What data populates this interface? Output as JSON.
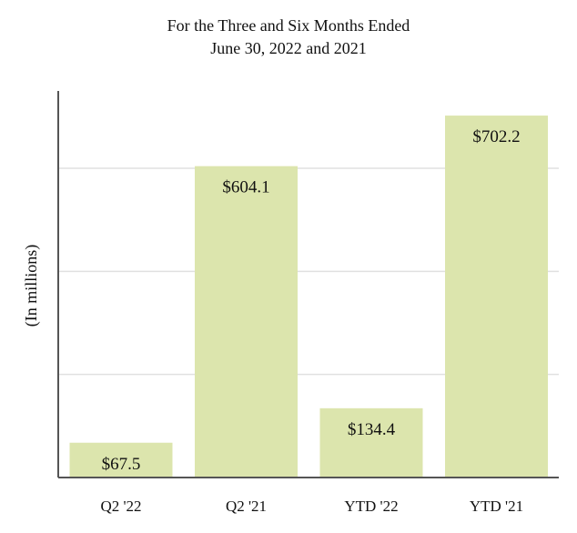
{
  "chart_data": {
    "type": "bar",
    "title_lines": [
      "For the Three and Six Months Ended",
      "June 30, 2022 and 2021"
    ],
    "ylabel": "(In millions)",
    "categories": [
      "Q2 '22",
      "Q2 '21",
      "YTD '22",
      "YTD '21"
    ],
    "values": [
      67.5,
      604.1,
      134.4,
      702.2
    ],
    "value_labels": [
      "$67.5",
      "$604.1",
      "$134.4",
      "$702.2"
    ],
    "ylim": [
      0,
      750
    ],
    "grid_lines": [
      200,
      400,
      600
    ],
    "grid": true,
    "bar_color": "#dce5ad",
    "grid_color": "#e0e0e0",
    "axis_color": "#555555"
  }
}
